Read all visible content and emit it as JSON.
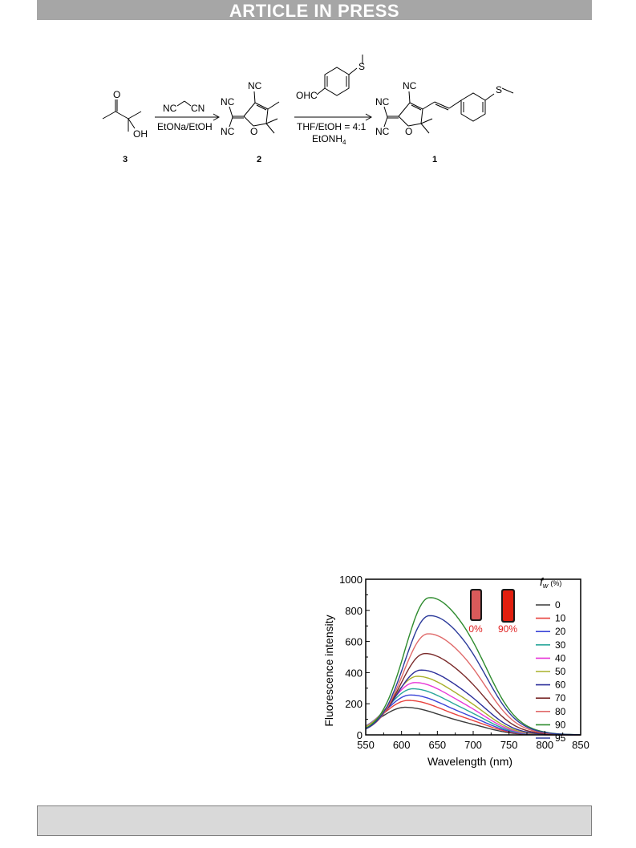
{
  "banner": {
    "text": "ARTICLE IN PRESS"
  },
  "scheme": {
    "reagent1_top": "NC",
    "reagent1_top_right": "CN",
    "reagent1_bottom": "EtONa/EtOH",
    "reagent2_aldehyde": "OHC",
    "reagent2_s": "S",
    "reagent2_bottom1": "THF/EtOH = 4:1",
    "reagent2_bottom2": "EtONH",
    "reagent2_sub": "4",
    "compound3": {
      "label": "3",
      "o": "O",
      "oh": "OH"
    },
    "compound2": {
      "label": "2",
      "nc_top": "NC",
      "nc_left_top": "NC",
      "nc_left_bottom": "NC",
      "o": "O"
    },
    "compound1": {
      "label": "1",
      "nc_top": "NC",
      "nc_left_top": "NC",
      "nc_left_bottom": "NC",
      "o": "O",
      "s": "S"
    }
  },
  "chart_data": {
    "type": "line",
    "xlabel": "Wavelength (nm)",
    "ylabel": "Fluorescence intensity",
    "xlim": [
      550,
      850
    ],
    "ylim": [
      0,
      1000
    ],
    "xticks": [
      "550",
      "600",
      "650",
      "700",
      "750",
      "800",
      "850"
    ],
    "yticks": [
      "0",
      "200",
      "400",
      "600",
      "800",
      "1000"
    ],
    "legend_title": "f",
    "legend_title_sub": "w",
    "legend_title_unit": "(%)",
    "legend_position": "right",
    "insets": [
      {
        "label": "0%"
      },
      {
        "label": "90%"
      }
    ],
    "series": [
      {
        "name": "0",
        "color": "#3a3a3a",
        "peak_x": 606,
        "peak_y": 175
      },
      {
        "name": "10",
        "color": "#e8423e",
        "peak_x": 610,
        "peak_y": 220
      },
      {
        "name": "20",
        "color": "#3a45d8",
        "peak_x": 613,
        "peak_y": 255
      },
      {
        "name": "30",
        "color": "#2aa79b",
        "peak_x": 616,
        "peak_y": 295
      },
      {
        "name": "40",
        "color": "#e838d8",
        "peak_x": 619,
        "peak_y": 335
      },
      {
        "name": "50",
        "color": "#a9b02a",
        "peak_x": 622,
        "peak_y": 375
      },
      {
        "name": "60",
        "color": "#2c2f9a",
        "peak_x": 627,
        "peak_y": 415
      },
      {
        "name": "70",
        "color": "#7a2a2a",
        "peak_x": 632,
        "peak_y": 520
      },
      {
        "name": "80",
        "color": "#e06a6a",
        "peak_x": 636,
        "peak_y": 645
      },
      {
        "name": "90",
        "color": "#2e8b2e",
        "peak_x": 638,
        "peak_y": 875
      },
      {
        "name": "95",
        "color": "#2b3a9a",
        "peak_x": 638,
        "peak_y": 760
      }
    ]
  }
}
